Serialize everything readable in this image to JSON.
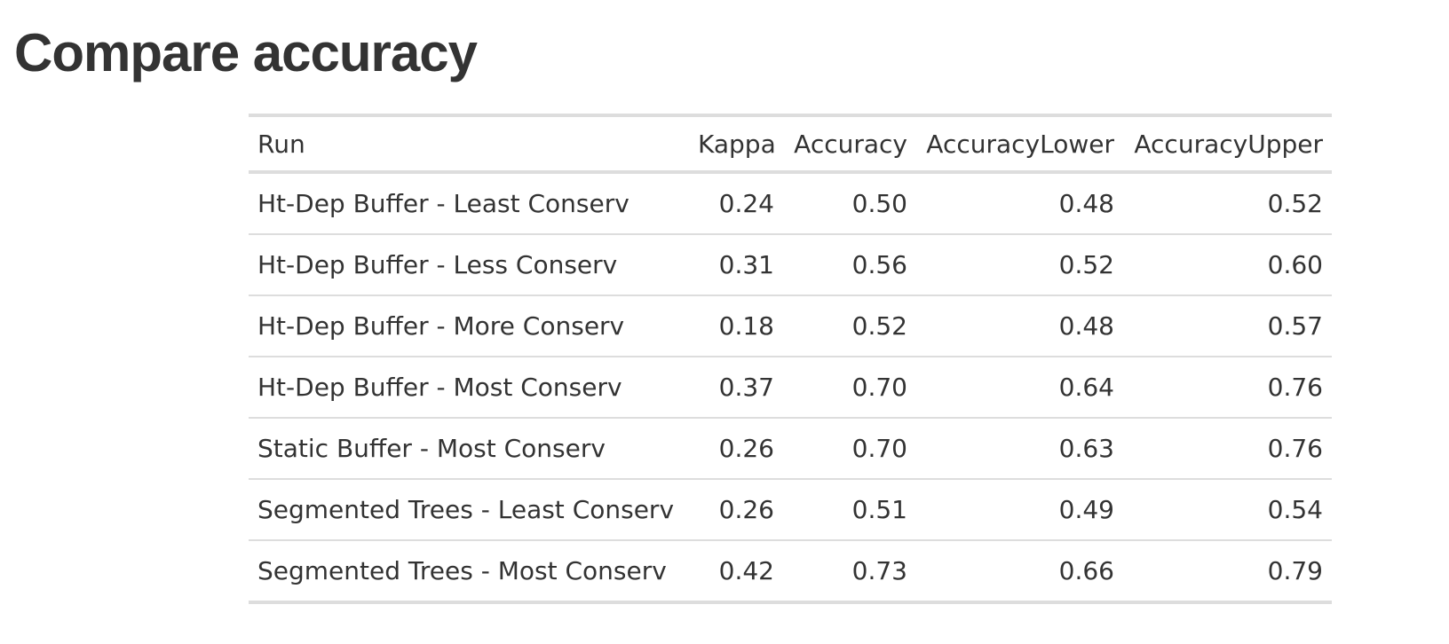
{
  "page": {
    "title": "Compare accuracy"
  },
  "table": {
    "columns": [
      "Run",
      "Kappa",
      "Accuracy",
      "AccuracyLower",
      "AccuracyUpper"
    ],
    "rows": [
      [
        "Ht-Dep Buffer - Least Conserv",
        "0.24",
        "0.50",
        "0.48",
        "0.52"
      ],
      [
        "Ht-Dep Buffer - Less Conserv",
        "0.31",
        "0.56",
        "0.52",
        "0.60"
      ],
      [
        "Ht-Dep Buffer - More Conserv",
        "0.18",
        "0.52",
        "0.48",
        "0.57"
      ],
      [
        "Ht-Dep Buffer - Most Conserv",
        "0.37",
        "0.70",
        "0.64",
        "0.76"
      ],
      [
        "Static Buffer - Most Conserv",
        "0.26",
        "0.70",
        "0.63",
        "0.76"
      ],
      [
        "Segmented Trees - Least Conserv",
        "0.26",
        "0.51",
        "0.49",
        "0.54"
      ],
      [
        "Segmented Trees - Most Conserv",
        "0.42",
        "0.73",
        "0.66",
        "0.79"
      ]
    ]
  },
  "colors": {
    "text": "#333333",
    "rule": "#dddddd",
    "background": "#ffffff"
  }
}
